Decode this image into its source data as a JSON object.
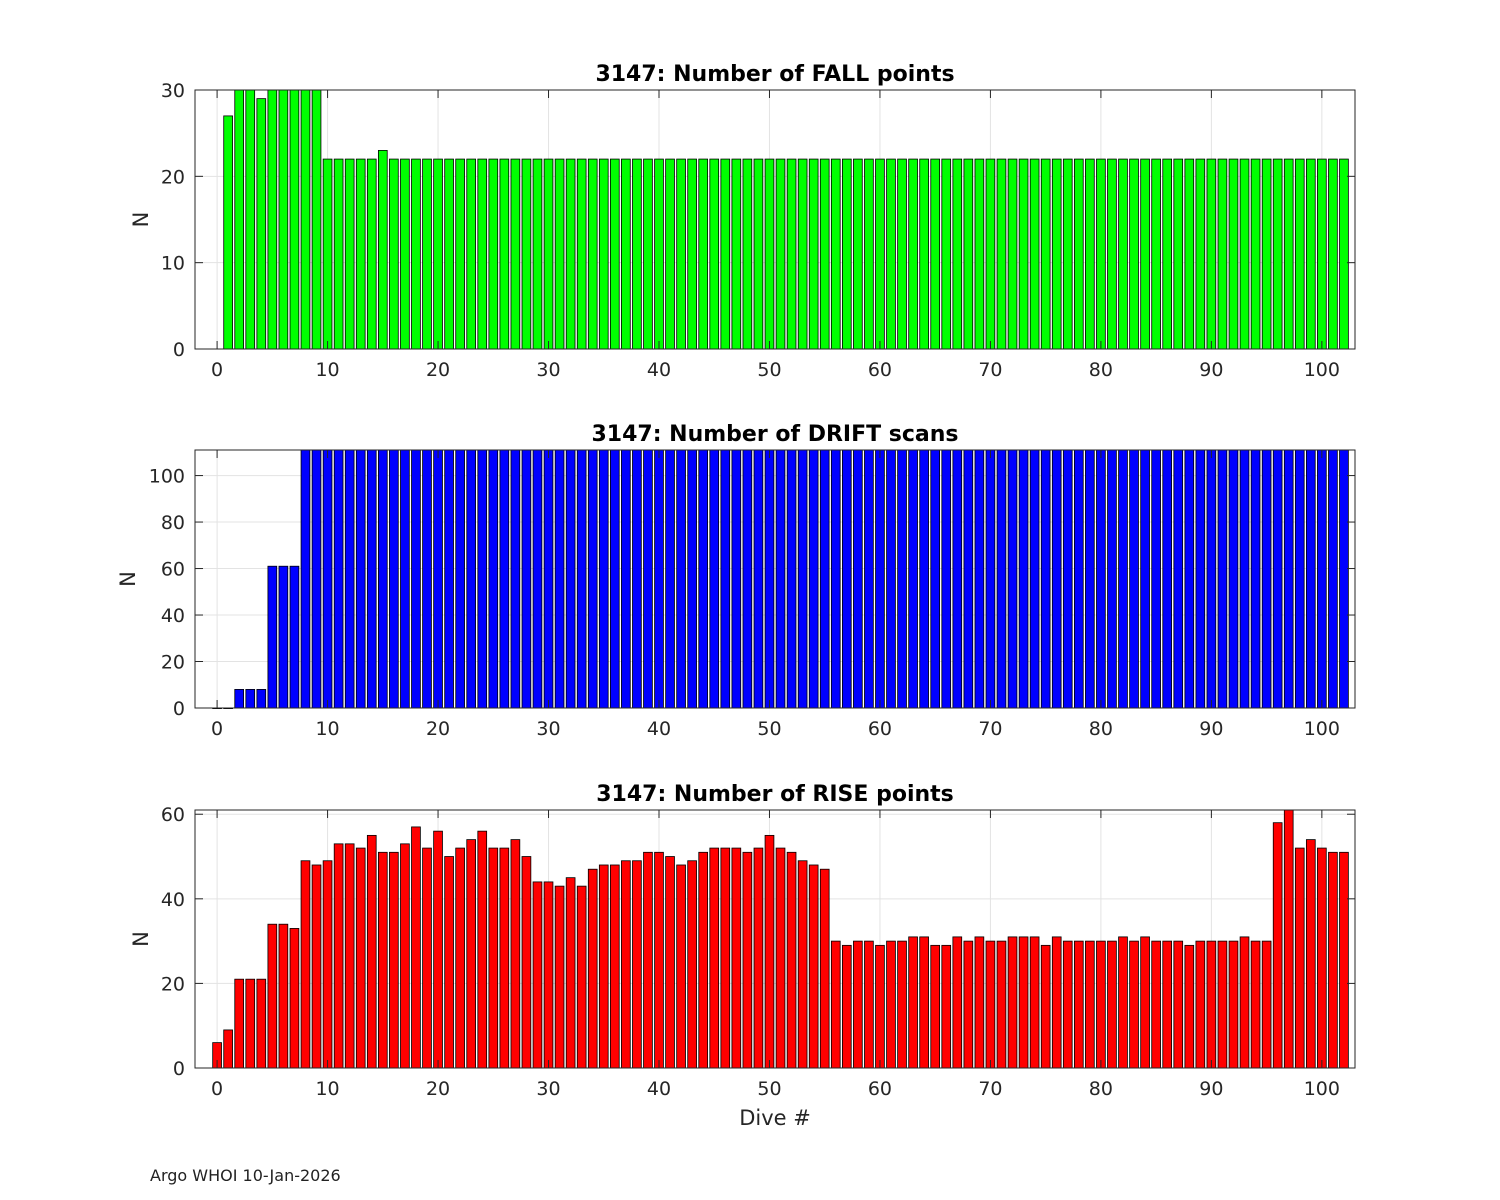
{
  "footer": "Argo WHOI 10-Jan-2026",
  "chart_data": [
    {
      "type": "bar",
      "title": "3147: Number of FALL points",
      "ylabel": "N",
      "xlabel": "",
      "color": "#00ff00",
      "xlim": [
        -2,
        103
      ],
      "ylim": [
        0,
        30
      ],
      "yticks": [
        0,
        10,
        20,
        30
      ],
      "xticks": [
        0,
        10,
        20,
        30,
        40,
        50,
        60,
        70,
        80,
        90,
        100
      ],
      "x_start": 1,
      "values": [
        27,
        30,
        30,
        29,
        30,
        30,
        30,
        30,
        30,
        22,
        22,
        22,
        22,
        22,
        23,
        22,
        22,
        22,
        22,
        22,
        22,
        22,
        22,
        22,
        22,
        22,
        22,
        22,
        22,
        22,
        22,
        22,
        22,
        22,
        22,
        22,
        22,
        22,
        22,
        22,
        22,
        22,
        22,
        22,
        22,
        22,
        22,
        22,
        22,
        22,
        22,
        22,
        22,
        22,
        22,
        22,
        22,
        22,
        22,
        22,
        22,
        22,
        22,
        22,
        22,
        22,
        22,
        22,
        22,
        22,
        22,
        22,
        22,
        22,
        22,
        22,
        22,
        22,
        22,
        22,
        22,
        22,
        22,
        22,
        22,
        22,
        22,
        22,
        22,
        22,
        22,
        22,
        22,
        22,
        22,
        22,
        22,
        22,
        22,
        22,
        22,
        22
      ]
    },
    {
      "type": "bar",
      "title": "3147: Number of DRIFT scans",
      "ylabel": "N",
      "xlabel": "",
      "color": "#0000ff",
      "xlim": [
        -2,
        103
      ],
      "ylim": [
        0,
        111
      ],
      "yticks": [
        0,
        20,
        40,
        60,
        80,
        100
      ],
      "xticks": [
        0,
        10,
        20,
        30,
        40,
        50,
        60,
        70,
        80,
        90,
        100
      ],
      "x_start": 0,
      "values": [
        0,
        0,
        8,
        8,
        8,
        61,
        61,
        61,
        111,
        111,
        111,
        111,
        111,
        111,
        111,
        111,
        111,
        111,
        111,
        111,
        111,
        111,
        111,
        111,
        111,
        111,
        111,
        111,
        111,
        111,
        111,
        111,
        111,
        111,
        111,
        111,
        111,
        111,
        111,
        111,
        111,
        111,
        111,
        111,
        111,
        111,
        111,
        111,
        111,
        111,
        111,
        111,
        111,
        111,
        111,
        111,
        111,
        111,
        111,
        111,
        111,
        111,
        111,
        111,
        111,
        111,
        111,
        111,
        111,
        111,
        111,
        111,
        111,
        111,
        111,
        111,
        111,
        111,
        111,
        111,
        111,
        111,
        111,
        111,
        111,
        111,
        111,
        111,
        111,
        111,
        111,
        111,
        111,
        111,
        111,
        111,
        111,
        111,
        111,
        111,
        111,
        111,
        111
      ]
    },
    {
      "type": "bar",
      "title": "3147: Number of RISE points",
      "ylabel": "N",
      "xlabel": "Dive #",
      "color": "#ff0000",
      "xlim": [
        -2,
        103
      ],
      "ylim": [
        0,
        61
      ],
      "yticks": [
        0,
        20,
        40,
        60
      ],
      "xticks": [
        0,
        10,
        20,
        30,
        40,
        50,
        60,
        70,
        80,
        90,
        100
      ],
      "x_start": 0,
      "values": [
        6,
        9,
        21,
        21,
        21,
        34,
        34,
        33,
        49,
        48,
        49,
        53,
        53,
        52,
        55,
        51,
        51,
        53,
        57,
        52,
        56,
        50,
        52,
        54,
        56,
        52,
        52,
        54,
        50,
        44,
        44,
        43,
        45,
        43,
        47,
        48,
        48,
        49,
        49,
        51,
        51,
        50,
        48,
        49,
        51,
        52,
        52,
        52,
        51,
        52,
        55,
        52,
        51,
        49,
        48,
        47,
        30,
        29,
        30,
        30,
        29,
        30,
        30,
        31,
        31,
        29,
        29,
        31,
        30,
        31,
        30,
        30,
        31,
        31,
        31,
        29,
        31,
        30,
        30,
        30,
        30,
        30,
        31,
        30,
        31,
        30,
        30,
        30,
        29,
        30,
        30,
        30,
        30,
        31,
        30,
        30,
        58,
        61,
        52,
        54,
        52,
        51,
        51
      ]
    }
  ]
}
